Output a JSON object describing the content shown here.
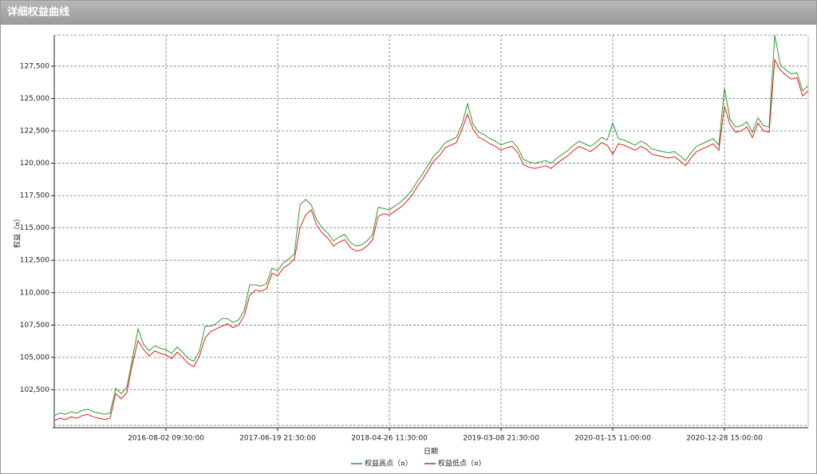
{
  "window": {
    "title": "详细权益曲线"
  },
  "chart_data": {
    "type": "line",
    "x_label": "日期",
    "y_label": "权益（¤）",
    "categories": [
      null,
      null,
      null,
      null,
      null,
      null,
      null,
      null,
      null,
      null,
      null,
      null,
      null,
      null,
      null,
      null,
      null,
      null,
      null,
      null,
      "2016-08-02 09:30:00",
      null,
      null,
      null,
      null,
      null,
      null,
      null,
      null,
      null,
      null,
      null,
      null,
      null,
      null,
      null,
      null,
      null,
      null,
      null,
      "2017-06-19 21:30:00",
      null,
      null,
      null,
      null,
      null,
      null,
      null,
      null,
      null,
      null,
      null,
      null,
      null,
      null,
      null,
      null,
      null,
      null,
      null,
      "2018-04-26 11:30:00",
      null,
      null,
      null,
      null,
      null,
      null,
      null,
      null,
      null,
      null,
      null,
      null,
      null,
      null,
      null,
      null,
      null,
      null,
      null,
      "2019-03-08 21:30:00",
      null,
      null,
      null,
      null,
      null,
      null,
      null,
      null,
      null,
      null,
      null,
      null,
      null,
      null,
      null,
      null,
      null,
      null,
      null,
      "2020-01-15 11:00:00",
      null,
      null,
      null,
      null,
      null,
      null,
      null,
      null,
      null,
      null,
      null,
      null,
      null,
      null,
      null,
      null,
      null,
      null,
      null,
      "2020-12-28 15:00:00",
      null,
      null,
      null,
      null,
      null,
      null,
      null,
      null,
      null,
      null,
      null,
      null,
      null,
      null,
      null
    ],
    "series": [
      {
        "name": "权益高点（¤）",
        "color": "#2e9a2e",
        "values": [
          100500,
          100700,
          100600,
          100800,
          100700,
          100900,
          101000,
          100800,
          100700,
          100600,
          100700,
          102600,
          102200,
          102700,
          104900,
          107200,
          106000,
          105500,
          105900,
          105700,
          105600,
          105300,
          105800,
          105400,
          104900,
          104700,
          105500,
          107400,
          107400,
          107600,
          108000,
          108000,
          107700,
          107900,
          108600,
          110600,
          110600,
          110500,
          110700,
          111900,
          111700,
          112300,
          112600,
          113000,
          116800,
          117200,
          116800,
          115600,
          115000,
          114600,
          114000,
          114300,
          114500,
          113900,
          113600,
          113700,
          114000,
          114500,
          116600,
          116500,
          116400,
          116700,
          117000,
          117400,
          117900,
          118600,
          119200,
          119900,
          120600,
          121000,
          121600,
          121800,
          122000,
          123000,
          124600,
          123000,
          122400,
          122200,
          121900,
          121700,
          121400,
          121600,
          121700,
          121200,
          120300,
          120100,
          120000,
          120100,
          120200,
          120000,
          120400,
          120700,
          121000,
          121400,
          121700,
          121500,
          121300,
          121600,
          122000,
          121800,
          123100,
          121900,
          121800,
          121600,
          121400,
          121700,
          121500,
          121100,
          121000,
          120900,
          120800,
          120900,
          120600,
          120200,
          120800,
          121300,
          121500,
          121700,
          121900,
          121400,
          125800,
          123400,
          122800,
          122900,
          123200,
          122400,
          123500,
          122900,
          122800,
          129900,
          127600,
          127200,
          126900,
          127000,
          125600,
          126000
        ]
      },
      {
        "name": "权益低点（¤）",
        "color": "#e0201a",
        "values": [
          100100,
          100300,
          100200,
          100400,
          100300,
          100500,
          100600,
          100400,
          100300,
          100200,
          100300,
          102200,
          101800,
          102300,
          104500,
          106300,
          105600,
          105100,
          105500,
          105300,
          105200,
          104900,
          105400,
          105000,
          104500,
          104300,
          105100,
          106500,
          107000,
          107200,
          107400,
          107600,
          107300,
          107500,
          108200,
          109800,
          110200,
          110100,
          110300,
          111500,
          111300,
          111900,
          112200,
          112600,
          115000,
          116000,
          116400,
          115200,
          114600,
          114200,
          113600,
          113900,
          114100,
          113500,
          113200,
          113300,
          113600,
          114100,
          115900,
          116100,
          116000,
          116300,
          116600,
          117000,
          117500,
          118200,
          118800,
          119500,
          120200,
          120600,
          121200,
          121400,
          121600,
          122600,
          123800,
          122600,
          122000,
          121800,
          121500,
          121300,
          121000,
          121200,
          121300,
          120800,
          119900,
          119700,
          119600,
          119700,
          119800,
          119600,
          120000,
          120300,
          120600,
          121000,
          121300,
          121100,
          120900,
          121200,
          121600,
          121400,
          120700,
          121500,
          121400,
          121200,
          121000,
          121300,
          121100,
          120700,
          120600,
          120500,
          120400,
          120500,
          120200,
          119800,
          120400,
          120900,
          121100,
          121300,
          121500,
          121000,
          124400,
          123000,
          122400,
          122500,
          122800,
          122000,
          123100,
          122500,
          122400,
          128000,
          127200,
          126800,
          126500,
          126600,
          125200,
          125600
        ]
      }
    ],
    "ylim": [
      99750,
      129900
    ],
    "yticks": [
      {
        "value": 102500,
        "label": "102,500"
      },
      {
        "value": 105000,
        "label": "105,000"
      },
      {
        "value": 107500,
        "label": "107,500"
      },
      {
        "value": 110000,
        "label": "110,000"
      },
      {
        "value": 112500,
        "label": "112,500"
      },
      {
        "value": 115000,
        "label": "115,000"
      },
      {
        "value": 117500,
        "label": "117,500"
      },
      {
        "value": 120000,
        "label": "120,000"
      },
      {
        "value": 122500,
        "label": "122,500"
      },
      {
        "value": 125000,
        "label": "125,000"
      },
      {
        "value": 127500,
        "label": "127,500"
      }
    ],
    "grid": true
  }
}
